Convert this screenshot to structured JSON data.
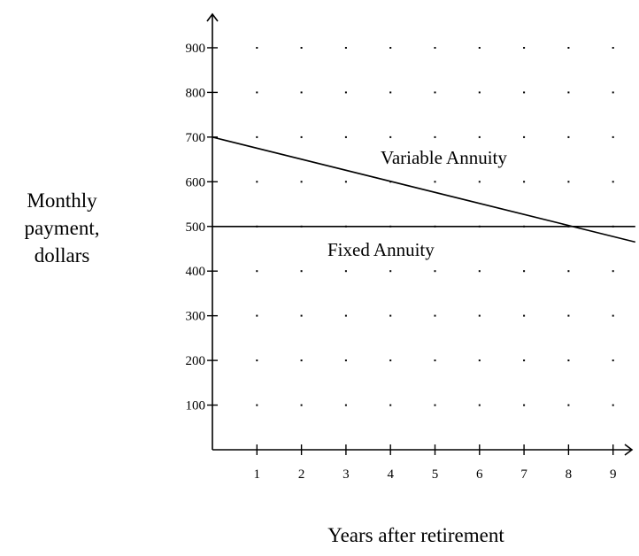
{
  "chart_data": {
    "type": "line",
    "xlabel": "Years after retirement",
    "ylabel_lines": [
      "Monthly",
      "payment,",
      "dollars"
    ],
    "x_ticks": [
      "1",
      "2",
      "3",
      "4",
      "5",
      "6",
      "7",
      "8",
      "9"
    ],
    "y_ticks": [
      "100",
      "200",
      "300",
      "400",
      "500",
      "600",
      "700",
      "800",
      "900"
    ],
    "xlim": [
      0,
      9.5
    ],
    "ylim": [
      0,
      950
    ],
    "grid": "dotted",
    "series": [
      {
        "name": "Variable Annuity",
        "x": [
          0,
          9.5
        ],
        "y": [
          700,
          465
        ]
      },
      {
        "name": "Fixed Annuity",
        "x": [
          0,
          9.5
        ],
        "y": [
          500,
          500
        ]
      }
    ]
  }
}
